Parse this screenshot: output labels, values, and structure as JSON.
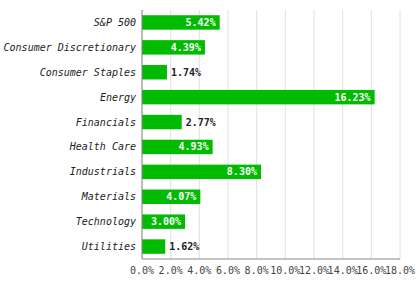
{
  "chart_data": {
    "type": "bar",
    "orientation": "horizontal",
    "categories": [
      "S&P 500",
      "Consumer Discretionary",
      "Consumer Staples",
      "Energy",
      "Financials",
      "Health Care",
      "Industrials",
      "Materials",
      "Technology",
      "Utilities"
    ],
    "values": [
      5.42,
      4.39,
      1.74,
      16.23,
      2.77,
      4.93,
      8.3,
      4.07,
      3.0,
      1.62
    ],
    "value_labels": [
      "5.42%",
      "4.39%",
      "1.74%",
      "16.23%",
      "2.77%",
      "4.93%",
      "8.30%",
      "4.07%",
      "3.00%",
      "1.62%"
    ],
    "data_labels": true,
    "color": "#00bb00",
    "xlim": [
      0,
      18.0
    ],
    "xticks": [
      {
        "value": 0,
        "label": "0.0%"
      },
      {
        "value": 2,
        "label": "2.0%"
      },
      {
        "value": 4,
        "label": "4.0%"
      },
      {
        "value": 6,
        "label": "6.0%"
      },
      {
        "value": 8,
        "label": "8.0%"
      },
      {
        "value": 10,
        "label": "10.0%"
      },
      {
        "value": 12,
        "label": "12.0%"
      },
      {
        "value": 14,
        "label": "14.0%"
      },
      {
        "value": 16,
        "label": "16.0%"
      },
      {
        "value": 18,
        "label": "18.0%"
      }
    ],
    "grid": true
  }
}
